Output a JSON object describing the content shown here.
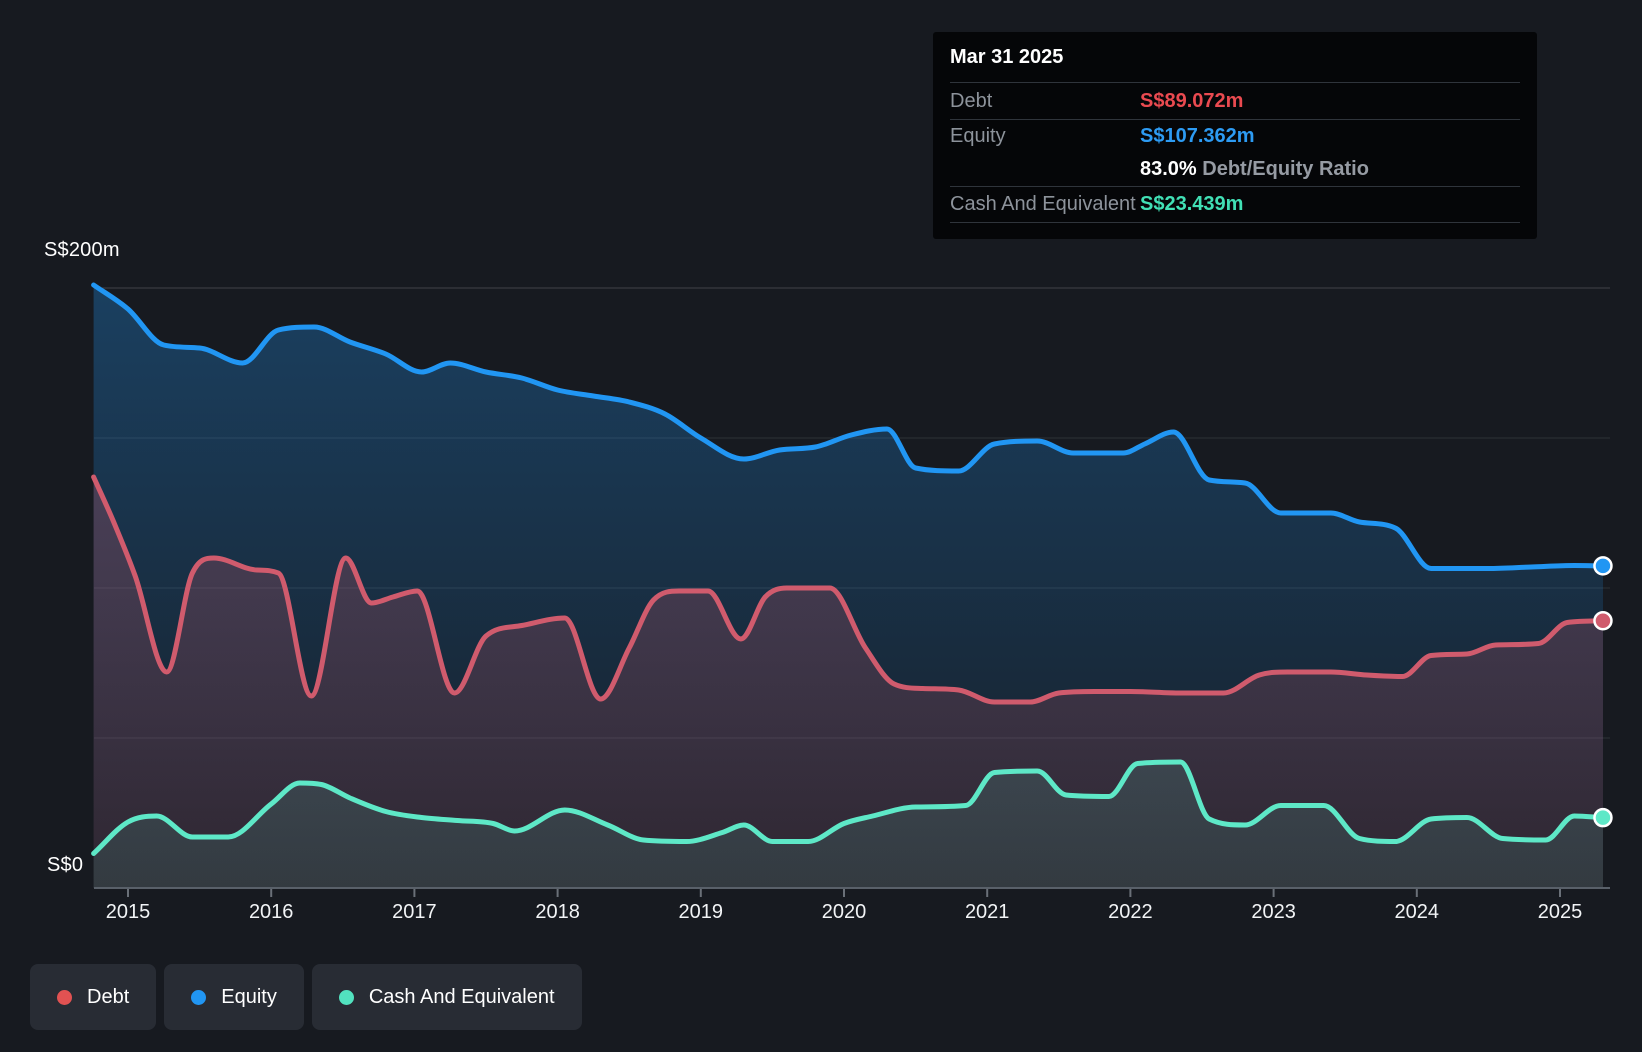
{
  "tooltip": {
    "date": "Mar 31 2025",
    "rows": [
      {
        "label": "Debt",
        "value": "S$89.072m",
        "color": "#ea4a50"
      },
      {
        "label": "Equity",
        "value": "S$107.362m",
        "color": "#2d9bf3"
      },
      {
        "ratio_value": "83.0%",
        "ratio_label": "Debt/Equity Ratio"
      },
      {
        "label": "Cash And Equivalent",
        "value": "S$23.439m",
        "color": "#41e0b5"
      }
    ]
  },
  "y_axis": {
    "top_label": "S$200m",
    "bottom_label": "S$0"
  },
  "x_axis": {
    "years": [
      "2015",
      "2016",
      "2017",
      "2018",
      "2019",
      "2020",
      "2021",
      "2022",
      "2023",
      "2024",
      "2025"
    ]
  },
  "legend": [
    {
      "label": "Debt",
      "color": "#e15252"
    },
    {
      "label": "Equity",
      "color": "#2196f3"
    },
    {
      "label": "Cash And Equivalent",
      "color": "#52e2bf"
    }
  ],
  "chart_data": {
    "type": "area",
    "unit": "S$ millions",
    "ylim": [
      0,
      200
    ],
    "x_range": [
      2014.76,
      2025.3
    ],
    "gridline_values": [
      200,
      150,
      100,
      50
    ],
    "legend_position": "bottom",
    "latest": {
      "date": "Mar 31 2025",
      "debt": 89.072,
      "equity": 107.362,
      "debt_equity_ratio_pct": 83.0,
      "cash_and_equivalent": 23.439
    },
    "series": [
      {
        "name": "Equity",
        "color": "#2196f3",
        "fill_alpha_top": 0.3,
        "fill_alpha_bottom": 0.04,
        "points": [
          [
            2014.76,
            201
          ],
          [
            2015.0,
            193
          ],
          [
            2015.25,
            181
          ],
          [
            2015.5,
            180
          ],
          [
            2015.8,
            175
          ],
          [
            2016.05,
            186
          ],
          [
            2016.3,
            187
          ],
          [
            2016.55,
            182
          ],
          [
            2016.8,
            178
          ],
          [
            2017.05,
            172
          ],
          [
            2017.25,
            175
          ],
          [
            2017.5,
            172
          ],
          [
            2017.75,
            170
          ],
          [
            2018.0,
            166
          ],
          [
            2018.25,
            164
          ],
          [
            2018.5,
            162
          ],
          [
            2018.75,
            158
          ],
          [
            2019.0,
            150
          ],
          [
            2019.3,
            143
          ],
          [
            2019.55,
            146
          ],
          [
            2019.8,
            147
          ],
          [
            2020.05,
            151
          ],
          [
            2020.3,
            153
          ],
          [
            2020.5,
            140
          ],
          [
            2020.8,
            139
          ],
          [
            2021.05,
            148
          ],
          [
            2021.35,
            149
          ],
          [
            2021.6,
            145
          ],
          [
            2021.95,
            145
          ],
          [
            2022.1,
            148
          ],
          [
            2022.3,
            152
          ],
          [
            2022.55,
            136
          ],
          [
            2022.8,
            135
          ],
          [
            2023.05,
            125
          ],
          [
            2023.4,
            125
          ],
          [
            2023.6,
            122
          ],
          [
            2023.85,
            120
          ],
          [
            2024.1,
            106.5
          ],
          [
            2024.5,
            106.5
          ],
          [
            2024.8,
            107
          ],
          [
            2025.1,
            107.5
          ],
          [
            2025.3,
            107.362
          ]
        ]
      },
      {
        "name": "Debt",
        "color": "#d05b6d",
        "fill_alpha_top": 0.33,
        "fill_alpha_bottom": 0.12,
        "points": [
          [
            2014.76,
            137
          ],
          [
            2014.9,
            122
          ],
          [
            2015.05,
            104
          ],
          [
            2015.27,
            72
          ],
          [
            2015.45,
            105
          ],
          [
            2015.6,
            110
          ],
          [
            2015.9,
            106
          ],
          [
            2016.05,
            105
          ],
          [
            2016.28,
            64
          ],
          [
            2016.52,
            110
          ],
          [
            2016.7,
            95
          ],
          [
            2016.85,
            97
          ],
          [
            2017.02,
            99
          ],
          [
            2017.28,
            65
          ],
          [
            2017.5,
            84
          ],
          [
            2017.75,
            87.5
          ],
          [
            2018.05,
            90
          ],
          [
            2018.3,
            63
          ],
          [
            2018.5,
            80
          ],
          [
            2018.67,
            96
          ],
          [
            2018.85,
            99
          ],
          [
            2019.05,
            99
          ],
          [
            2019.28,
            83
          ],
          [
            2019.45,
            97
          ],
          [
            2019.6,
            100
          ],
          [
            2019.9,
            100
          ],
          [
            2020.15,
            80
          ],
          [
            2020.35,
            68
          ],
          [
            2020.55,
            66.5
          ],
          [
            2020.8,
            66
          ],
          [
            2021.05,
            62
          ],
          [
            2021.3,
            62
          ],
          [
            2021.5,
            65
          ],
          [
            2021.75,
            65.5
          ],
          [
            2022.0,
            65.5
          ],
          [
            2022.35,
            65
          ],
          [
            2022.65,
            65
          ],
          [
            2022.9,
            71
          ],
          [
            2023.1,
            72
          ],
          [
            2023.4,
            72
          ],
          [
            2023.65,
            71
          ],
          [
            2023.9,
            70.5
          ],
          [
            2024.1,
            77.5
          ],
          [
            2024.35,
            78
          ],
          [
            2024.55,
            81
          ],
          [
            2024.85,
            81.5
          ],
          [
            2025.05,
            88.5
          ],
          [
            2025.3,
            89.072
          ]
        ]
      },
      {
        "name": "Cash And Equivalent",
        "color": "#5ee8c7",
        "fill_alpha_top": 0.2,
        "fill_alpha_bottom": 0.1,
        "points": [
          [
            2014.76,
            11.5
          ],
          [
            2015.0,
            22
          ],
          [
            2015.2,
            24
          ],
          [
            2015.45,
            17
          ],
          [
            2015.7,
            17
          ],
          [
            2016.0,
            28
          ],
          [
            2016.2,
            35
          ],
          [
            2016.35,
            34.5
          ],
          [
            2016.55,
            30
          ],
          [
            2016.8,
            25.5
          ],
          [
            2017.05,
            23.5
          ],
          [
            2017.3,
            22.5
          ],
          [
            2017.55,
            21.5
          ],
          [
            2017.7,
            19
          ],
          [
            2018.05,
            26
          ],
          [
            2018.35,
            21
          ],
          [
            2018.6,
            16
          ],
          [
            2018.9,
            15.5
          ],
          [
            2019.15,
            18.5
          ],
          [
            2019.3,
            21
          ],
          [
            2019.5,
            15.5
          ],
          [
            2019.75,
            15.5
          ],
          [
            2020.0,
            21.5
          ],
          [
            2020.2,
            24
          ],
          [
            2020.5,
            27
          ],
          [
            2020.85,
            27.5
          ],
          [
            2021.05,
            38.5
          ],
          [
            2021.35,
            39
          ],
          [
            2021.55,
            31
          ],
          [
            2021.85,
            30.5
          ],
          [
            2022.05,
            41.5
          ],
          [
            2022.35,
            42
          ],
          [
            2022.55,
            23
          ],
          [
            2022.8,
            21
          ],
          [
            2023.05,
            27.5
          ],
          [
            2023.35,
            27.5
          ],
          [
            2023.6,
            16.5
          ],
          [
            2023.85,
            15.5
          ],
          [
            2024.1,
            23
          ],
          [
            2024.35,
            23.5
          ],
          [
            2024.6,
            16.5
          ],
          [
            2024.9,
            16
          ],
          [
            2025.1,
            24
          ],
          [
            2025.3,
            23.439
          ]
        ]
      }
    ]
  }
}
